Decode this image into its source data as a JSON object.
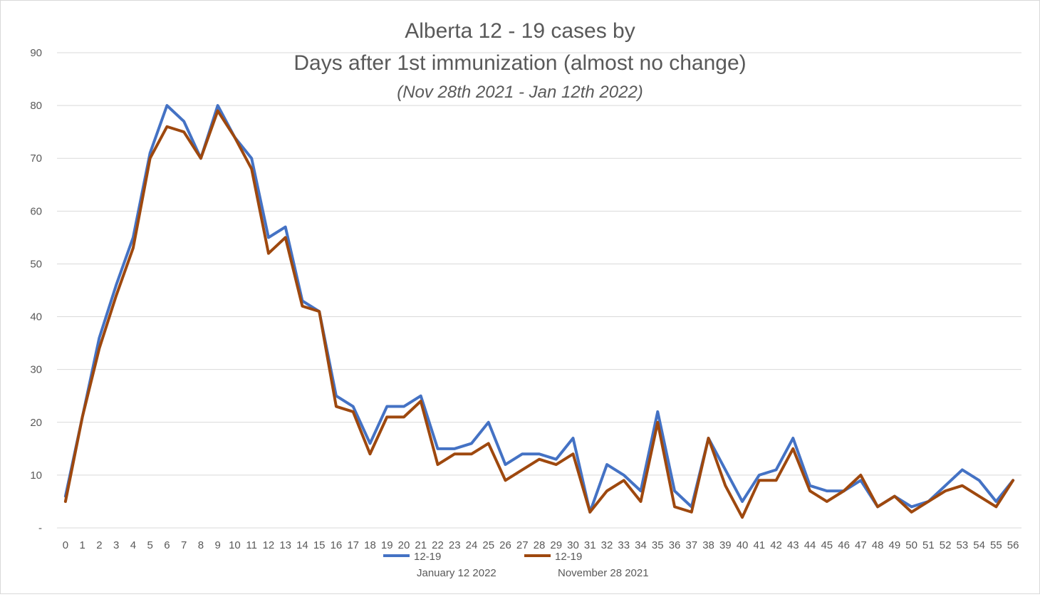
{
  "chart_data": {
    "type": "line",
    "title_lines": [
      "Alberta 12 - 19 cases by",
      "Days after 1st immunization (almost no change)"
    ],
    "subtitle": "(Nov 28th 2021 - Jan 12th 2022)",
    "xlabel": "",
    "ylabel": "",
    "ylim": [
      0,
      90
    ],
    "yticks": [
      0,
      10,
      20,
      30,
      40,
      50,
      60,
      70,
      80,
      90
    ],
    "ytick_labels": [
      "-",
      "10",
      "20",
      "30",
      "40",
      "50",
      "60",
      "70",
      "80",
      "90"
    ],
    "grid": true,
    "legend_position": "bottom",
    "x": [
      0,
      1,
      2,
      3,
      4,
      5,
      6,
      7,
      8,
      9,
      10,
      11,
      12,
      13,
      14,
      15,
      16,
      17,
      18,
      19,
      20,
      21,
      22,
      23,
      24,
      25,
      26,
      27,
      28,
      29,
      30,
      31,
      32,
      33,
      34,
      35,
      36,
      37,
      38,
      39,
      40,
      41,
      42,
      43,
      44,
      45,
      46,
      47,
      48,
      49,
      50,
      51,
      52,
      53,
      54,
      55,
      56
    ],
    "series": [
      {
        "name": "12-19",
        "sublabel": "January 12 2022",
        "color": "#4472c4",
        "values": [
          6,
          21,
          36,
          46,
          55,
          71,
          80,
          77,
          70,
          80,
          74,
          70,
          55,
          57,
          43,
          41,
          25,
          23,
          16,
          23,
          23,
          25,
          15,
          15,
          16,
          20,
          12,
          14,
          14,
          13,
          17,
          3,
          12,
          10,
          7,
          22,
          7,
          4,
          17,
          11,
          5,
          10,
          11,
          17,
          8,
          7,
          7,
          9,
          4,
          6,
          4,
          5,
          8,
          11,
          9,
          5,
          9
        ]
      },
      {
        "name": "12-19",
        "sublabel": "November 28 2021",
        "color": "#9e480e",
        "values": [
          5,
          21,
          34,
          44,
          53,
          70,
          76,
          75,
          70,
          79,
          74,
          68,
          52,
          55,
          42,
          41,
          23,
          22,
          14,
          21,
          21,
          24,
          12,
          14,
          14,
          16,
          9,
          11,
          13,
          12,
          14,
          3,
          7,
          9,
          5,
          20,
          4,
          3,
          17,
          8,
          2,
          9,
          9,
          15,
          7,
          5,
          7,
          10,
          4,
          6,
          3,
          5,
          7,
          8,
          6,
          4,
          9
        ]
      }
    ]
  }
}
